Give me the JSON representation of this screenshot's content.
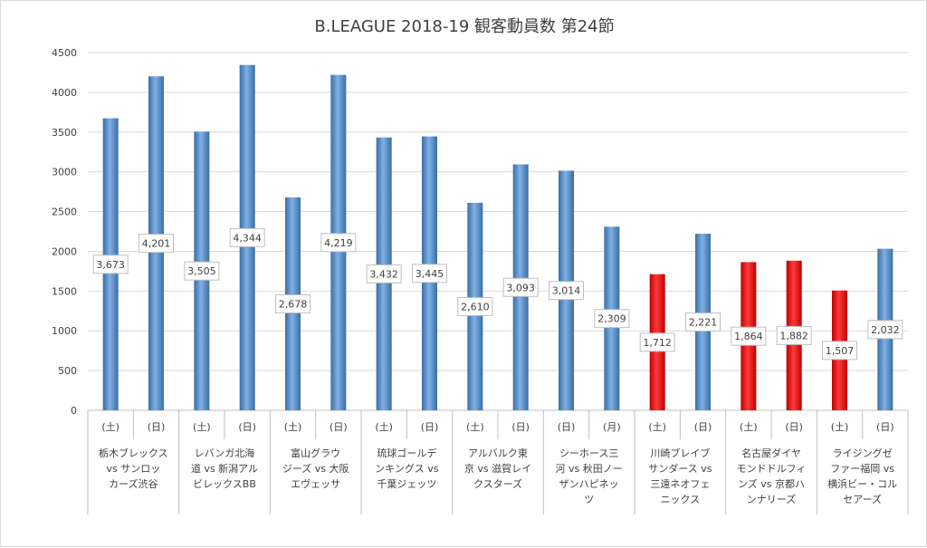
{
  "chart_data": {
    "type": "bar",
    "title": "B.LEAGUE 2018-19 観客動員数 第24節",
    "ylim": [
      0,
      4500
    ],
    "y_ticks": [
      0,
      500,
      1000,
      1500,
      2000,
      2500,
      3000,
      3500,
      4000,
      4500
    ],
    "grid": true,
    "legend": "none",
    "colors": {
      "default": "#4f81bd",
      "highlight": "#ff0000"
    },
    "matchups": [
      {
        "label": [
          "栃木ブレックス",
          "vs サンロッ",
          "カーズ渋谷"
        ]
      },
      {
        "label": [
          "レバンガ北海",
          "道 vs 新潟アル",
          "ビレックスBB"
        ]
      },
      {
        "label": [
          "富山グラウ",
          "ジーズ vs 大阪",
          "エヴェッサ"
        ]
      },
      {
        "label": [
          "琉球ゴールデ",
          "ンキングス vs",
          "千葉ジェッツ"
        ]
      },
      {
        "label": [
          "アルバルク東",
          "京 vs 滋賀レイ",
          "クスターズ"
        ]
      },
      {
        "label": [
          "シーホース三",
          "河 vs 秋田ノー",
          "ザンハピネッ",
          "ツ"
        ]
      },
      {
        "label": [
          "川崎ブレイブ",
          "サンダース vs",
          "三遠ネオフェ",
          "ニックス"
        ]
      },
      {
        "label": [
          "名古屋ダイヤ",
          "モンドドルフィ",
          "ンズ vs 京都ハ",
          "ンナリーズ"
        ]
      },
      {
        "label": [
          "ライジングゼ",
          "ファー福岡 vs",
          "横浜ビー・コル",
          "セアーズ"
        ]
      }
    ],
    "days": [
      "(土)",
      "(日)",
      "(土)",
      "(日)",
      "(土)",
      "(日)",
      "(土)",
      "(日)",
      "(土)",
      "(日)",
      "(日)",
      "(月)",
      "(土)",
      "(日)",
      "(土)",
      "(日)",
      "(土)",
      "(日)"
    ],
    "values": [
      3673,
      4201,
      3505,
      4344,
      2678,
      4219,
      3432,
      3445,
      2610,
      3093,
      3014,
      2309,
      1712,
      2221,
      1864,
      1882,
      1507,
      2032
    ],
    "value_labels": [
      "3,673",
      "4,201",
      "3,505",
      "4,344",
      "2,678",
      "4,219",
      "3,432",
      "3,445",
      "2,610",
      "3,093",
      "3,014",
      "2,309",
      "1,712",
      "2,221",
      "1,864",
      "1,882",
      "1,507",
      "2,032"
    ],
    "highlight": [
      false,
      false,
      false,
      false,
      false,
      false,
      false,
      false,
      false,
      false,
      false,
      false,
      true,
      false,
      true,
      true,
      true,
      false
    ]
  }
}
